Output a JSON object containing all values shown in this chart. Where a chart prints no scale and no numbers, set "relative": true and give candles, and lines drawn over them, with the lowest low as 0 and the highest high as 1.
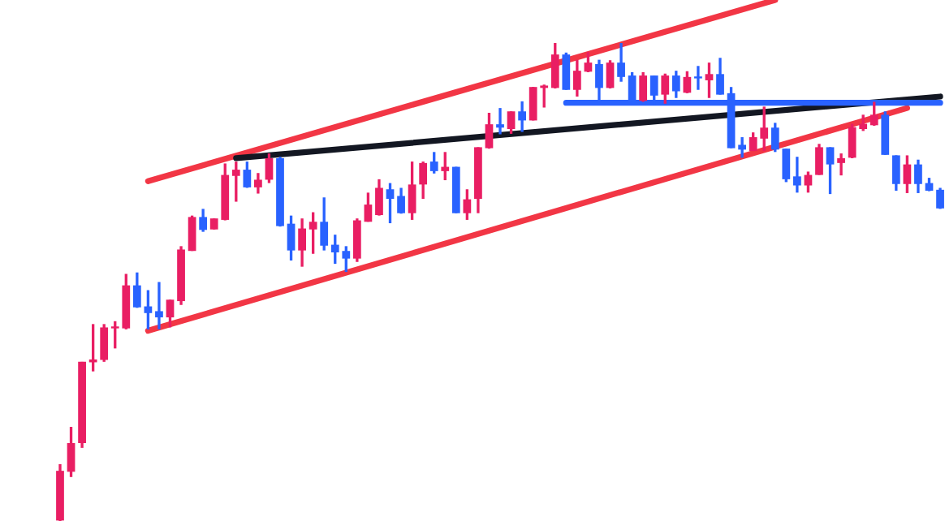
{
  "chart_data": {
    "type": "candlestick",
    "relative": true,
    "categories": [
      null,
      null,
      null,
      null,
      null,
      null,
      null,
      null,
      null,
      null,
      null,
      null,
      null,
      null,
      null,
      null,
      null,
      null,
      null,
      null,
      null,
      null,
      null,
      null,
      null,
      null,
      null,
      null,
      null,
      null,
      null,
      null,
      null,
      null,
      null,
      null,
      null,
      null,
      null,
      null,
      null,
      null,
      null,
      null,
      null,
      null,
      null,
      null,
      null,
      null,
      null,
      null,
      null,
      null,
      null,
      null,
      null,
      null,
      null,
      null,
      null,
      null,
      null,
      null,
      null,
      null,
      null,
      null,
      null,
      null,
      null,
      null,
      null,
      null,
      null,
      null,
      null,
      null,
      null,
      null,
      null
    ],
    "ohlc": [
      [
        0.001,
        0.119,
        0,
        0.105
      ],
      [
        0.103,
        0.197,
        0.092,
        0.163
      ],
      [
        0.163,
        0.333,
        0.153,
        0.333
      ],
      [
        0.332,
        0.412,
        0.313,
        0.338
      ],
      [
        0.337,
        0.412,
        0.333,
        0.405
      ],
      [
        0.403,
        0.418,
        0.361,
        0.405
      ],
      [
        0.403,
        0.517,
        0.401,
        0.493
      ],
      [
        0.493,
        0.52,
        0.446,
        0.447
      ],
      [
        0.449,
        0.483,
        0.401,
        0.435
      ],
      [
        0.439,
        0.5,
        0.401,
        0.426
      ],
      [
        0.426,
        0.463,
        0.405,
        0.463
      ],
      [
        0.46,
        0.575,
        0.452,
        0.568
      ],
      [
        0.565,
        0.639,
        0.565,
        0.636
      ],
      [
        0.636,
        0.653,
        0.605,
        0.609
      ],
      [
        0.61,
        0.633,
        0.61,
        0.633
      ],
      [
        0.63,
        0.748,
        0.629,
        0.724
      ],
      [
        0.722,
        0.752,
        0.668,
        0.735
      ],
      [
        0.735,
        0.752,
        0.697,
        0.698
      ],
      [
        0.698,
        0.728,
        0.685,
        0.714
      ],
      [
        0.714,
        0.769,
        0.707,
        0.759
      ],
      [
        0.759,
        0.762,
        0.616,
        0.617
      ],
      [
        0.622,
        0.639,
        0.545,
        0.566
      ],
      [
        0.566,
        0.633,
        0.532,
        0.612
      ],
      [
        0.61,
        0.646,
        0.559,
        0.626
      ],
      [
        0.626,
        0.677,
        0.566,
        0.576
      ],
      [
        0.578,
        0.599,
        0.538,
        0.562
      ],
      [
        0.565,
        0.575,
        0.521,
        0.549
      ],
      [
        0.549,
        0.633,
        0.542,
        0.629
      ],
      [
        0.626,
        0.687,
        0.626,
        0.662
      ],
      [
        0.64,
        0.715,
        0.639,
        0.697
      ],
      [
        0.694,
        0.707,
        0.623,
        0.674
      ],
      [
        0.68,
        0.697,
        0.643,
        0.644
      ],
      [
        0.644,
        0.752,
        0.63,
        0.704
      ],
      [
        0.704,
        0.752,
        0.674,
        0.749
      ],
      [
        0.752,
        0.772,
        0.727,
        0.732
      ],
      [
        0.732,
        0.772,
        0.713,
        0.741
      ],
      [
        0.741,
        0.741,
        0.644,
        0.644
      ],
      [
        0.644,
        0.694,
        0.63,
        0.673
      ],
      [
        0.674,
        0.782,
        0.644,
        0.782
      ],
      [
        0.78,
        0.854,
        0.779,
        0.83
      ],
      [
        0.83,
        0.864,
        0.809,
        0.823
      ],
      [
        0.82,
        0.857,
        0.81,
        0.857
      ],
      [
        0.857,
        0.878,
        0.814,
        0.838
      ],
      [
        0.838,
        0.908,
        0.838,
        0.908
      ],
      [
        0.906,
        0.913,
        0.865,
        0.911
      ],
      [
        0.906,
        1,
        0.905,
        0.976
      ],
      [
        0.976,
        0.98,
        0.902,
        0.902
      ],
      [
        0.902,
        0.965,
        0.888,
        0.942
      ],
      [
        0.94,
        0.981,
        0.939,
        0.959
      ],
      [
        0.956,
        0.965,
        0.879,
        0.906
      ],
      [
        0.906,
        0.964,
        0.905,
        0.959
      ],
      [
        0.959,
        1,
        0.919,
        0.929
      ],
      [
        0.932,
        0.939,
        0.878,
        0.879
      ],
      [
        0.879,
        0.939,
        0.877,
        0.932
      ],
      [
        0.932,
        0.932,
        0.87,
        0.89
      ],
      [
        0.892,
        0.936,
        0.873,
        0.932
      ],
      [
        0.932,
        0.942,
        0.885,
        0.899
      ],
      [
        0.896,
        0.941,
        0.895,
        0.929
      ],
      [
        0.929,
        0.952,
        0.902,
        0.926
      ],
      [
        0.922,
        0.959,
        0.885,
        0.935
      ],
      [
        0.935,
        0.969,
        0.892,
        0.892
      ],
      [
        0.895,
        0.908,
        0.78,
        0.78
      ],
      [
        0.787,
        0.803,
        0.76,
        0.777
      ],
      [
        0.774,
        0.813,
        0.774,
        0.803
      ],
      [
        0.8,
        0.867,
        0.774,
        0.823
      ],
      [
        0.823,
        0.833,
        0.772,
        0.777
      ],
      [
        0.779,
        0.779,
        0.709,
        0.715
      ],
      [
        0.721,
        0.762,
        0.687,
        0.702
      ],
      [
        0.702,
        0.731,
        0.687,
        0.724
      ],
      [
        0.724,
        0.789,
        0.724,
        0.782
      ],
      [
        0.782,
        0.782,
        0.684,
        0.746
      ],
      [
        0.749,
        0.769,
        0.723,
        0.759
      ],
      [
        0.76,
        0.831,
        0.759,
        0.824
      ],
      [
        0.82,
        0.85,
        0.816,
        0.831
      ],
      [
        0.828,
        0.877,
        0.827,
        0.85
      ],
      [
        0.85,
        0.857,
        0.766,
        0.766
      ],
      [
        0.765,
        0.765,
        0.691,
        0.705
      ],
      [
        0.705,
        0.765,
        0.686,
        0.746
      ],
      [
        0.746,
        0.756,
        0.686,
        0.705
      ],
      [
        0.707,
        0.718,
        0.69,
        0.691
      ],
      [
        0.693,
        0.697,
        0.653,
        0.654
      ]
    ],
    "colors": [
      "#e91e63",
      "#e91e63",
      "#e91e63",
      "#e91e63",
      "#e91e63",
      "#e91e63",
      "#e91e63",
      "#2962ff",
      "#2962ff",
      "#2962ff",
      "#e91e63",
      "#e91e63",
      "#e91e63",
      "#2962ff",
      "#e91e63",
      "#e91e63",
      "#e91e63",
      "#2962ff",
      "#e91e63",
      "#e91e63",
      "#2962ff",
      "#2962ff",
      "#e91e63",
      "#e91e63",
      "#2962ff",
      "#2962ff",
      "#2962ff",
      "#e91e63",
      "#e91e63",
      "#e91e63",
      "#2962ff",
      "#2962ff",
      "#e91e63",
      "#e91e63",
      "#2962ff",
      "#e91e63",
      "#2962ff",
      "#e91e63",
      "#e91e63",
      "#e91e63",
      "#2962ff",
      "#e91e63",
      "#2962ff",
      "#e91e63",
      "#e91e63",
      "#e91e63",
      "#2962ff",
      "#e91e63",
      "#e91e63",
      "#2962ff",
      "#e91e63",
      "#2962ff",
      "#2962ff",
      "#e91e63",
      "#2962ff",
      "#e91e63",
      "#2962ff",
      "#e91e63",
      "#2962ff",
      "#e91e63",
      "#2962ff",
      "#2962ff",
      "#2962ff",
      "#e91e63",
      "#e91e63",
      "#2962ff",
      "#2962ff",
      "#2962ff",
      "#e91e63",
      "#e91e63",
      "#2962ff",
      "#e91e63",
      "#e91e63",
      "#e91e63",
      "#e91e63",
      "#2962ff",
      "#2962ff",
      "#e91e63",
      "#2962ff",
      "#2962ff",
      "#2962ff"
    ],
    "series": [
      {
        "type": "line",
        "color": "#f23645",
        "values": [
          null,
          null,
          null,
          null,
          null,
          null,
          null,
          null,
          0.711,
          null,
          null,
          null,
          null,
          null,
          null,
          null,
          null,
          null,
          null,
          null,
          null,
          null,
          null,
          null,
          null,
          null,
          null,
          null,
          null,
          null,
          null,
          null,
          null,
          null,
          null,
          null,
          null,
          null,
          null,
          null,
          null,
          null,
          null,
          null,
          null,
          null,
          null,
          null,
          null,
          null,
          null,
          null,
          null,
          null,
          null,
          null,
          null,
          null,
          null,
          null,
          null,
          null,
          null,
          null,
          null,
          1.09,
          null,
          null,
          null,
          null,
          null,
          null,
          null,
          null,
          null,
          null,
          null,
          null,
          null,
          null,
          null
        ]
      },
      {
        "type": "line",
        "color": "#f23645",
        "values": [
          null,
          null,
          null,
          null,
          null,
          null,
          null,
          null,
          0.398,
          null,
          null,
          null,
          null,
          null,
          null,
          null,
          null,
          null,
          null,
          null,
          null,
          null,
          null,
          null,
          null,
          null,
          null,
          null,
          null,
          null,
          null,
          null,
          null,
          null,
          null,
          null,
          null,
          null,
          null,
          null,
          null,
          null,
          null,
          null,
          null,
          null,
          null,
          null,
          null,
          null,
          null,
          null,
          null,
          null,
          null,
          null,
          null,
          null,
          null,
          null,
          null,
          null,
          null,
          null,
          null,
          null,
          null,
          null,
          null,
          null,
          null,
          null,
          null,
          null,
          null,
          null,
          null,
          0.864,
          null,
          null,
          null
        ]
      },
      {
        "type": "line",
        "color": "#131722",
        "values": [
          null,
          null,
          null,
          null,
          null,
          null,
          null,
          null,
          null,
          null,
          null,
          null,
          null,
          null,
          null,
          null,
          0.759,
          null,
          null,
          null,
          null,
          null,
          null,
          null,
          null,
          null,
          null,
          null,
          null,
          null,
          null,
          null,
          null,
          null,
          null,
          null,
          null,
          null,
          null,
          null,
          null,
          null,
          null,
          null,
          null,
          null,
          null,
          null,
          null,
          null,
          null,
          null,
          null,
          null,
          null,
          null,
          null,
          null,
          null,
          null,
          null,
          null,
          null,
          null,
          null,
          null,
          null,
          null,
          null,
          null,
          null,
          null,
          null,
          null,
          null,
          null,
          null,
          null,
          null,
          null,
          0.888
        ]
      },
      {
        "type": "line",
        "color": "#2962ff",
        "values": [
          null,
          null,
          null,
          null,
          null,
          null,
          null,
          null,
          null,
          null,
          null,
          null,
          null,
          null,
          null,
          null,
          null,
          null,
          null,
          null,
          null,
          null,
          null,
          null,
          null,
          null,
          null,
          null,
          null,
          null,
          null,
          null,
          null,
          null,
          null,
          null,
          null,
          null,
          null,
          null,
          null,
          null,
          null,
          null,
          null,
          null,
          0.875,
          null,
          null,
          null,
          null,
          null,
          null,
          null,
          null,
          null,
          null,
          null,
          null,
          null,
          null,
          null,
          null,
          null,
          null,
          null,
          null,
          null,
          null,
          null,
          null,
          null,
          null,
          null,
          null,
          null,
          null,
          null,
          null,
          null,
          0.875
        ]
      }
    ]
  }
}
